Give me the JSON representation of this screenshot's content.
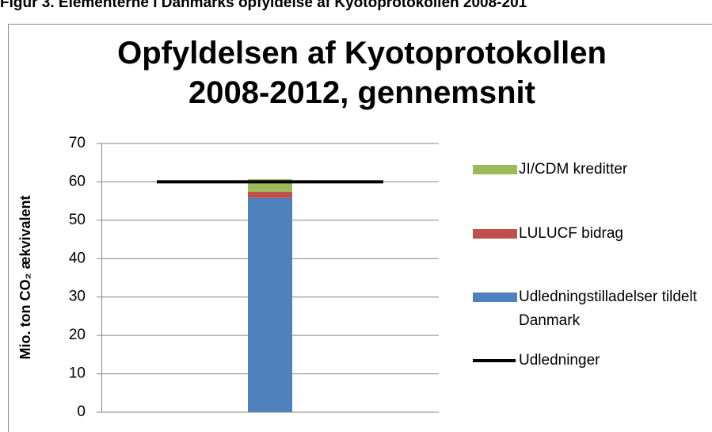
{
  "caption": "Figur 3. Elementerne i Danmarks opfyldelse af Kyotoprotokollen 2008-201",
  "chart_data": {
    "type": "stacked_bar",
    "title": "Opfyldelsen af Kyotoprotokollen 2008-2012, gennemsnit",
    "y_label": "Mio. ton CO₂ ækvivalent",
    "categories": [
      null
    ],
    "series": [
      {
        "name": "Udledningstilladelser tildelt Danmark",
        "color": "#4f81bd",
        "values": [
          55.8
        ]
      },
      {
        "name": "LULUCF bidrag",
        "color": "#c0504d",
        "values": [
          1.6
        ]
      },
      {
        "name": "JI/CDM kreditter",
        "color": "#9bbb59",
        "values": [
          3.3
        ]
      },
      {
        "name": "Udledninger",
        "type": "line",
        "color": "#000000",
        "values": [
          60
        ]
      }
    ],
    "ylim": [
      0,
      70
    ],
    "yticks": [
      0,
      10,
      20,
      30,
      40,
      50,
      60,
      70
    ],
    "grid": true
  }
}
